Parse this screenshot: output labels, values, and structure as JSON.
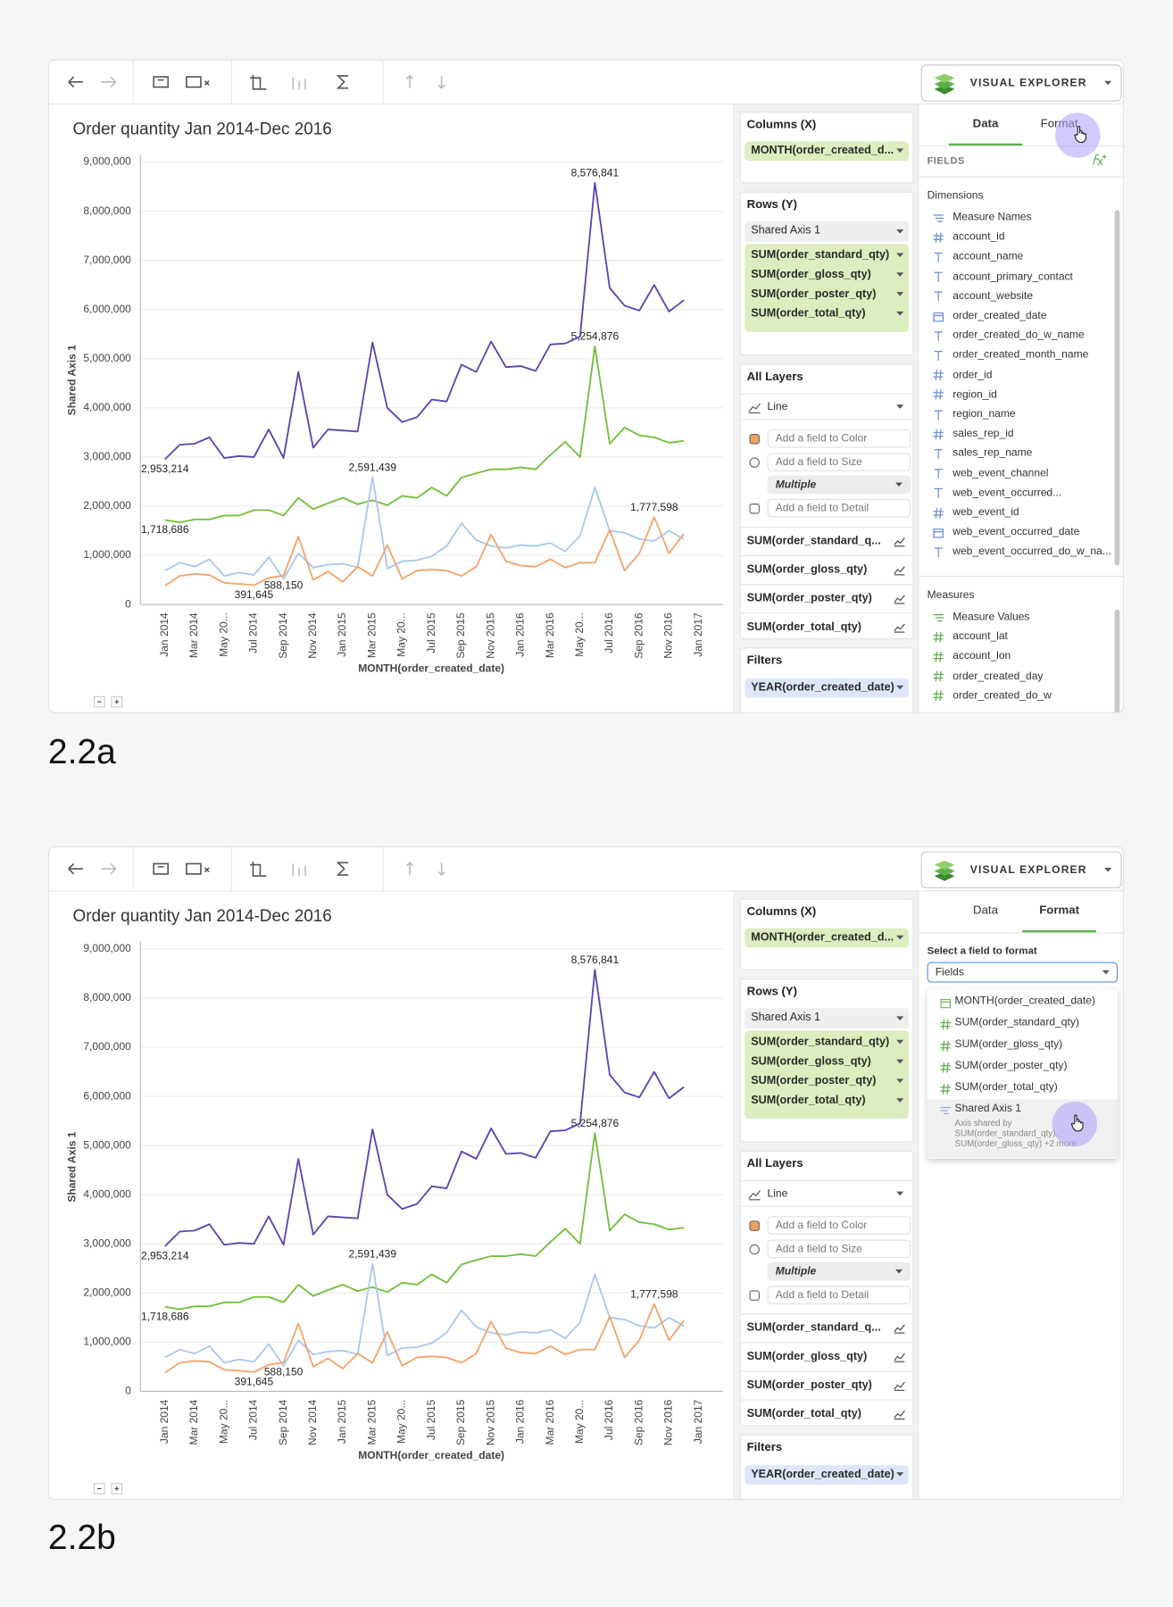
{
  "toolbar": {
    "product": "VISUAL EXPLORER"
  },
  "chart_data": {
    "type": "line",
    "title": "Order quantity Jan 2014-Dec 2016",
    "x_label": "MONTH(order_created_date)",
    "y_label": "Shared Axis 1",
    "categories": [
      "Jan 2014",
      null,
      "Mar 2014",
      null,
      "May 20...",
      null,
      "Jul 2014",
      null,
      "Sep 2014",
      null,
      "Nov 2014",
      null,
      "Jan 2015",
      null,
      "Mar 2015",
      null,
      "May 20...",
      null,
      "Jul 2015",
      null,
      "Sep 2015",
      null,
      "Nov 2015",
      null,
      "Jan 2016",
      null,
      "Mar 2016",
      null,
      "May 20...",
      null,
      "Jul 2016",
      null,
      "Sep 2016",
      null,
      "Nov 2016",
      null,
      "Jan 2017"
    ],
    "ylim": [
      0,
      9150000
    ],
    "yticks": [
      0,
      {
        "value": 1000000,
        "label": "1,000,000"
      },
      {
        "value": 2000000,
        "label": "2,000,000"
      },
      {
        "value": 3000000,
        "label": "3,000,000"
      },
      {
        "value": 4000000,
        "label": "4,000,000"
      },
      {
        "value": 5000000,
        "label": "5,000,000"
      },
      {
        "value": 6000000,
        "label": "6,000,000"
      },
      {
        "value": 7000000,
        "label": "7,000,000"
      },
      {
        "value": 8000000,
        "label": "8,000,000"
      },
      {
        "value": 9000000,
        "label": "9,000,000"
      }
    ],
    "grid": true,
    "series": [
      {
        "name": "SUM(order_standard_qty)",
        "color": "#72bf3c",
        "values": [
          1718686,
          1670000,
          1730000,
          1730000,
          1810000,
          1810000,
          1920000,
          1920000,
          1810000,
          2170000,
          1940000,
          2060000,
          2170000,
          2040000,
          2120000,
          2020000,
          2210000,
          2170000,
          2380000,
          2210000,
          2580000,
          2670000,
          2750000,
          2750000,
          2790000,
          2750000,
          3040000,
          3310000,
          3000000,
          5254876,
          3270000,
          3600000,
          3440000,
          3400000,
          3290000,
          3330000,
          null
        ],
        "value_labels": [
          "1,718,686",
          null,
          null,
          null,
          null,
          null,
          null,
          null,
          null,
          null,
          null,
          null,
          null,
          null,
          null,
          null,
          null,
          null,
          null,
          null,
          null,
          null,
          null,
          null,
          null,
          null,
          null,
          null,
          null,
          "5,254,876",
          null,
          null,
          null,
          null,
          null,
          null,
          null
        ]
      },
      {
        "name": "SUM(order_gloss_qty)",
        "color": "#a9c7f0",
        "values": [
          690000,
          850000,
          770000,
          920000,
          580000,
          650000,
          600000,
          960000,
          520000,
          1040000,
          750000,
          810000,
          830000,
          750000,
          2591439,
          730000,
          880000,
          900000,
          980000,
          1190000,
          1650000,
          1310000,
          1190000,
          1150000,
          1210000,
          1190000,
          1250000,
          1080000,
          1400000,
          2380000,
          1500000,
          1460000,
          1330000,
          1290000,
          1500000,
          1330000,
          null
        ],
        "value_labels": [
          null,
          null,
          null,
          null,
          null,
          null,
          null,
          null,
          null,
          null,
          null,
          null,
          null,
          null,
          "2,591,439",
          null,
          null,
          null,
          null,
          null,
          null,
          null,
          null,
          null,
          null,
          null,
          null,
          null,
          null,
          null,
          null,
          null,
          null,
          null,
          null,
          null,
          null
        ]
      },
      {
        "name": "SUM(order_poster_qty)",
        "color": "#f5a36c",
        "values": [
          380000,
          580000,
          620000,
          600000,
          440000,
          420000,
          391645,
          540000,
          588150,
          1380000,
          500000,
          670000,
          460000,
          770000,
          580000,
          1210000,
          520000,
          690000,
          710000,
          690000,
          580000,
          770000,
          1420000,
          880000,
          790000,
          770000,
          920000,
          750000,
          850000,
          850000,
          1520000,
          690000,
          1040000,
          1777598,
          1040000,
          1440000,
          null
        ],
        "value_labels": [
          null,
          null,
          null,
          null,
          null,
          null,
          "391,645",
          null,
          "588,150",
          null,
          null,
          null,
          null,
          null,
          null,
          null,
          null,
          null,
          null,
          null,
          null,
          null,
          null,
          null,
          null,
          null,
          null,
          null,
          null,
          null,
          null,
          null,
          null,
          "1,777,598",
          null,
          null,
          null
        ]
      },
      {
        "name": "SUM(order_total_qty)",
        "color": "#5a45b0",
        "values": [
          2953214,
          3250000,
          3270000,
          3400000,
          2980000,
          3020000,
          3000000,
          3560000,
          2980000,
          4730000,
          3190000,
          3560000,
          3540000,
          3520000,
          5330000,
          4000000,
          3710000,
          3810000,
          4170000,
          4130000,
          4880000,
          4730000,
          5350000,
          4830000,
          4850000,
          4750000,
          5290000,
          5310000,
          5450000,
          8576841,
          6440000,
          6080000,
          5980000,
          6500000,
          5960000,
          6190000,
          null
        ],
        "value_labels": [
          "2,953,214",
          null,
          null,
          null,
          null,
          null,
          null,
          null,
          null,
          null,
          null,
          null,
          null,
          null,
          null,
          null,
          null,
          null,
          null,
          null,
          null,
          null,
          null,
          null,
          null,
          null,
          null,
          null,
          null,
          "8,576,841",
          null,
          null,
          null,
          null,
          null,
          null,
          null
        ]
      }
    ]
  },
  "shelves": {
    "columns": {
      "title": "Columns (X)",
      "pills": [
        "MONTH(order_created_d..."
      ]
    },
    "rows": {
      "title": "Rows (Y)",
      "axis": "Shared Axis 1"
    },
    "layers": {
      "title": "All Layers",
      "mark": "Line",
      "color": "Add a field to Color",
      "size": "Add a field to Size",
      "label": "Multiple",
      "detail": "Add a field to Detail",
      "items": [
        "SUM(order_standard_q...",
        "SUM(order_gloss_qty)",
        "SUM(order_poster_qty)",
        "SUM(order_total_qty)"
      ]
    },
    "filters": {
      "title": "Filters",
      "pills": [
        "YEAR(order_created_date)"
      ]
    }
  },
  "panels": [
    {
      "label": "2.2a",
      "tabs": [
        "Data",
        "Format"
      ],
      "active_tab": 0,
      "fields": {
        "title": "FIELDS",
        "dimensions_title": "Dimensions",
        "dimensions": [
          {
            "name": "Measure Names",
            "icon": "list"
          },
          {
            "name": "account_id",
            "icon": "number"
          },
          {
            "name": "account_name",
            "icon": "text"
          },
          {
            "name": "account_primary_contact",
            "icon": "text"
          },
          {
            "name": "account_website",
            "icon": "text"
          },
          {
            "name": "order_created_date",
            "icon": "date"
          },
          {
            "name": "order_created_do_w_name",
            "icon": "text"
          },
          {
            "name": "order_created_month_name",
            "icon": "text"
          },
          {
            "name": "order_id",
            "icon": "number"
          },
          {
            "name": "region_id",
            "icon": "number"
          },
          {
            "name": "region_name",
            "icon": "text"
          },
          {
            "name": "sales_rep_id",
            "icon": "number"
          },
          {
            "name": "sales_rep_name",
            "icon": "text"
          },
          {
            "name": "web_event_channel",
            "icon": "text"
          },
          {
            "name": "web_event_occurred...",
            "icon": "text"
          },
          {
            "name": "web_event_id",
            "icon": "number"
          },
          {
            "name": "web_event_occurred_date",
            "icon": "date"
          },
          {
            "name": "web_event_occurred_do_w_na...",
            "icon": "text"
          }
        ],
        "measures_title": "Measures",
        "measures": [
          {
            "name": "Measure Values",
            "icon": "list"
          },
          {
            "name": "account_lat",
            "icon": "number"
          },
          {
            "name": "account_lon",
            "icon": "number"
          },
          {
            "name": "order_created_day",
            "icon": "number"
          },
          {
            "name": "order_created_do_w",
            "icon": "number"
          }
        ]
      }
    },
    {
      "label": "2.2b",
      "tabs": [
        "Data",
        "Format"
      ],
      "active_tab": 1,
      "format": {
        "prompt": "Select a field to format",
        "select": "Fields",
        "options": [
          {
            "name": "MONTH(order_created_date)",
            "icon": "date"
          },
          {
            "name": "SUM(order_standard_qty)",
            "icon": "number"
          },
          {
            "name": "SUM(order_gloss_qty)",
            "icon": "number"
          },
          {
            "name": "SUM(order_poster_qty)",
            "icon": "number"
          },
          {
            "name": "SUM(order_total_qty)",
            "icon": "number"
          },
          {
            "name": "Shared Axis 1",
            "icon": "axis",
            "note": [
              "Axis shared by",
              "SUM(order_standard_qty),",
              "SUM(order_gloss_qty) +2 more"
            ]
          }
        ]
      }
    }
  ]
}
